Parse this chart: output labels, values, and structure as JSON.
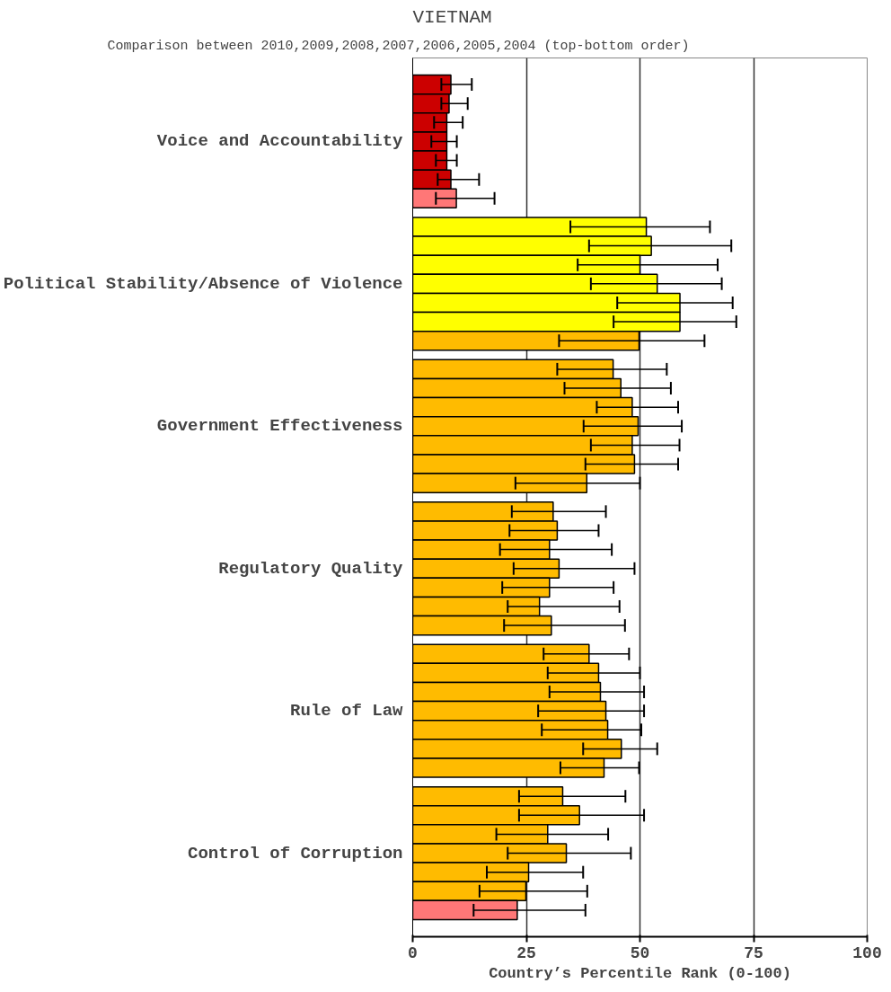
{
  "chart_data": {
    "type": "bar",
    "orientation": "horizontal",
    "title": "VIETNAM",
    "subtitle": "Comparison between 2010,2009,2008,2007,2006,2005,2004 (top-bottom order)",
    "xlabel": "Country’s Percentile Rank (0-100)",
    "categories": [
      "Voice and Accountability",
      "Political Stability/Absence of Violence",
      "Government Effectiveness",
      "Regulatory Quality",
      "Rule of Law",
      "Control of Corruption"
    ],
    "series": [
      {
        "values": [
          8.4,
          51.4,
          44.1,
          30.9,
          38.8,
          33.0
        ],
        "colors": [
          "#cc0000",
          "#ffff00",
          "#ffbb00",
          "#ffbb00",
          "#ffbb00",
          "#ffbb00"
        ],
        "errors": [
          [
            6.3,
            13.0
          ],
          [
            34.7,
            65.4
          ],
          [
            31.8,
            55.9
          ],
          [
            21.8,
            42.5
          ],
          [
            28.8,
            47.6
          ],
          [
            23.4,
            46.8
          ]
        ]
      },
      {
        "values": [
          8.0,
          52.5,
          45.8,
          31.8,
          40.9,
          36.7
        ],
        "colors": [
          "#cc0000",
          "#ffff00",
          "#ffbb00",
          "#ffbb00",
          "#ffbb00",
          "#ffbb00"
        ],
        "errors": [
          [
            6.3,
            12.1
          ],
          [
            38.8,
            70.1
          ],
          [
            33.4,
            56.8
          ],
          [
            21.3,
            40.9
          ],
          [
            29.7,
            50.0
          ],
          [
            23.4,
            50.9
          ]
        ]
      },
      {
        "values": [
          7.5,
          50.0,
          48.3,
          30.1,
          41.3,
          29.7
        ],
        "colors": [
          "#cc0000",
          "#ffff00",
          "#ffbb00",
          "#ffbb00",
          "#ffbb00",
          "#ffbb00"
        ],
        "errors": [
          [
            4.7,
            11.0
          ],
          [
            36.3,
            67.1
          ],
          [
            40.5,
            58.4
          ],
          [
            19.2,
            43.8
          ],
          [
            30.1,
            50.9
          ],
          [
            18.4,
            43.0
          ]
        ]
      },
      {
        "values": [
          7.5,
          53.8,
          49.6,
          32.2,
          42.5,
          33.8
        ],
        "colors": [
          "#cc0000",
          "#ffff00",
          "#ffbb00",
          "#ffbb00",
          "#ffbb00",
          "#ffbb00"
        ],
        "errors": [
          [
            4.1,
            9.7
          ],
          [
            39.2,
            68.0
          ],
          [
            37.6,
            59.2
          ],
          [
            22.2,
            48.8
          ],
          [
            27.6,
            50.9
          ],
          [
            20.9,
            48.0
          ]
        ]
      },
      {
        "values": [
          7.5,
          58.8,
          48.3,
          30.1,
          42.9,
          25.5
        ],
        "colors": [
          "#cc0000",
          "#ffff00",
          "#ffbb00",
          "#ffbb00",
          "#ffbb00",
          "#ffbb00"
        ],
        "errors": [
          [
            5.1,
            9.7
          ],
          [
            45.0,
            70.4
          ],
          [
            39.2,
            58.7
          ],
          [
            19.7,
            44.2
          ],
          [
            28.4,
            50.3
          ],
          [
            16.3,
            37.5
          ]
        ]
      },
      {
        "values": [
          8.4,
          58.8,
          48.8,
          27.9,
          45.9,
          24.9
        ],
        "colors": [
          "#cc0000",
          "#ffff00",
          "#ffbb00",
          "#ffbb00",
          "#ffbb00",
          "#ffbb00"
        ],
        "errors": [
          [
            5.5,
            14.6
          ],
          [
            44.2,
            71.2
          ],
          [
            38.0,
            58.4
          ],
          [
            20.9,
            45.5
          ],
          [
            37.5,
            53.8
          ],
          [
            14.7,
            38.4
          ]
        ]
      },
      {
        "values": [
          9.6,
          49.8,
          38.3,
          30.5,
          42.1,
          23.0
        ],
        "colors": [
          "#ff7777",
          "#ffbb00",
          "#ffbb00",
          "#ffbb00",
          "#ffbb00",
          "#ff7777"
        ],
        "errors": [
          [
            5.1,
            18.0
          ],
          [
            32.2,
            64.2
          ],
          [
            22.6,
            50.0
          ],
          [
            20.1,
            46.7
          ],
          [
            32.5,
            49.8
          ],
          [
            13.4,
            38.0
          ]
        ]
      }
    ],
    "xlim": [
      0,
      100
    ],
    "xticks": [
      0,
      25,
      50,
      75,
      100
    ],
    "grid": "x"
  }
}
